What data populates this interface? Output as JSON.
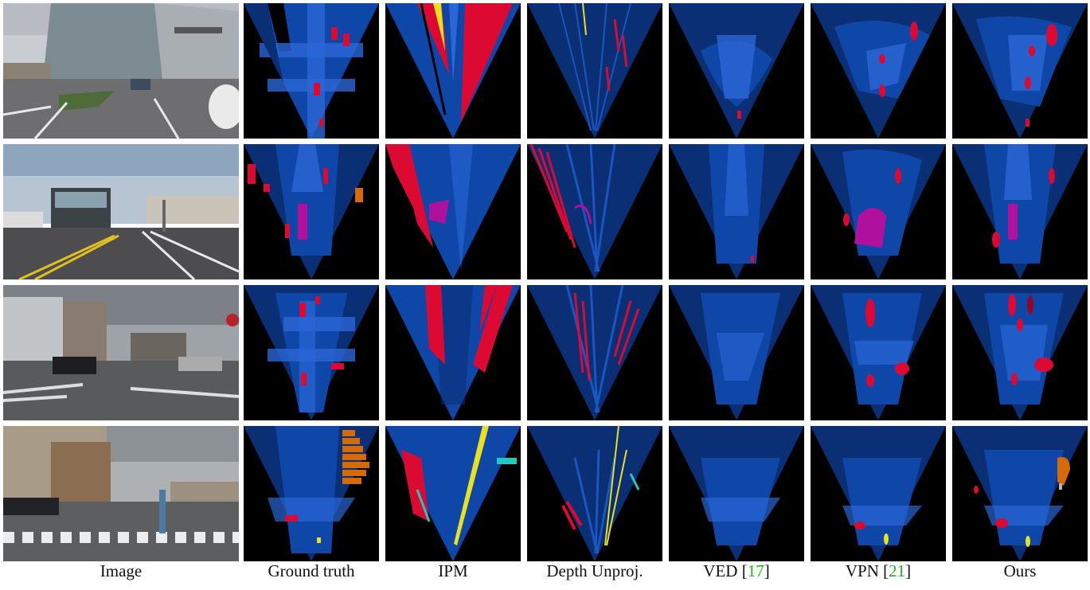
{
  "figure": {
    "captions": [
      {
        "label": "Image",
        "ref": ""
      },
      {
        "label": "Ground truth",
        "ref": ""
      },
      {
        "label": "IPM",
        "ref": ""
      },
      {
        "label": "Depth Unproj.",
        "ref": ""
      },
      {
        "label": "VED",
        "ref": "17"
      },
      {
        "label": "VPN",
        "ref": "21"
      },
      {
        "label": "Ours",
        "ref": ""
      }
    ],
    "colors": {
      "background": "#000000",
      "drivable": "#0f47a8",
      "lane": "#2a66d6",
      "sidewalk": "#0a2f74",
      "vehicle": "#dc0a32",
      "bus": "#b0109e",
      "barrier": "#d46a0a",
      "cone": "#e8e020",
      "pedestrian": "#20c8c0",
      "citation": "#1db51d"
    },
    "rows": [
      {
        "scene": "row-1"
      },
      {
        "scene": "row-2"
      },
      {
        "scene": "row-3"
      },
      {
        "scene": "row-4"
      }
    ]
  }
}
